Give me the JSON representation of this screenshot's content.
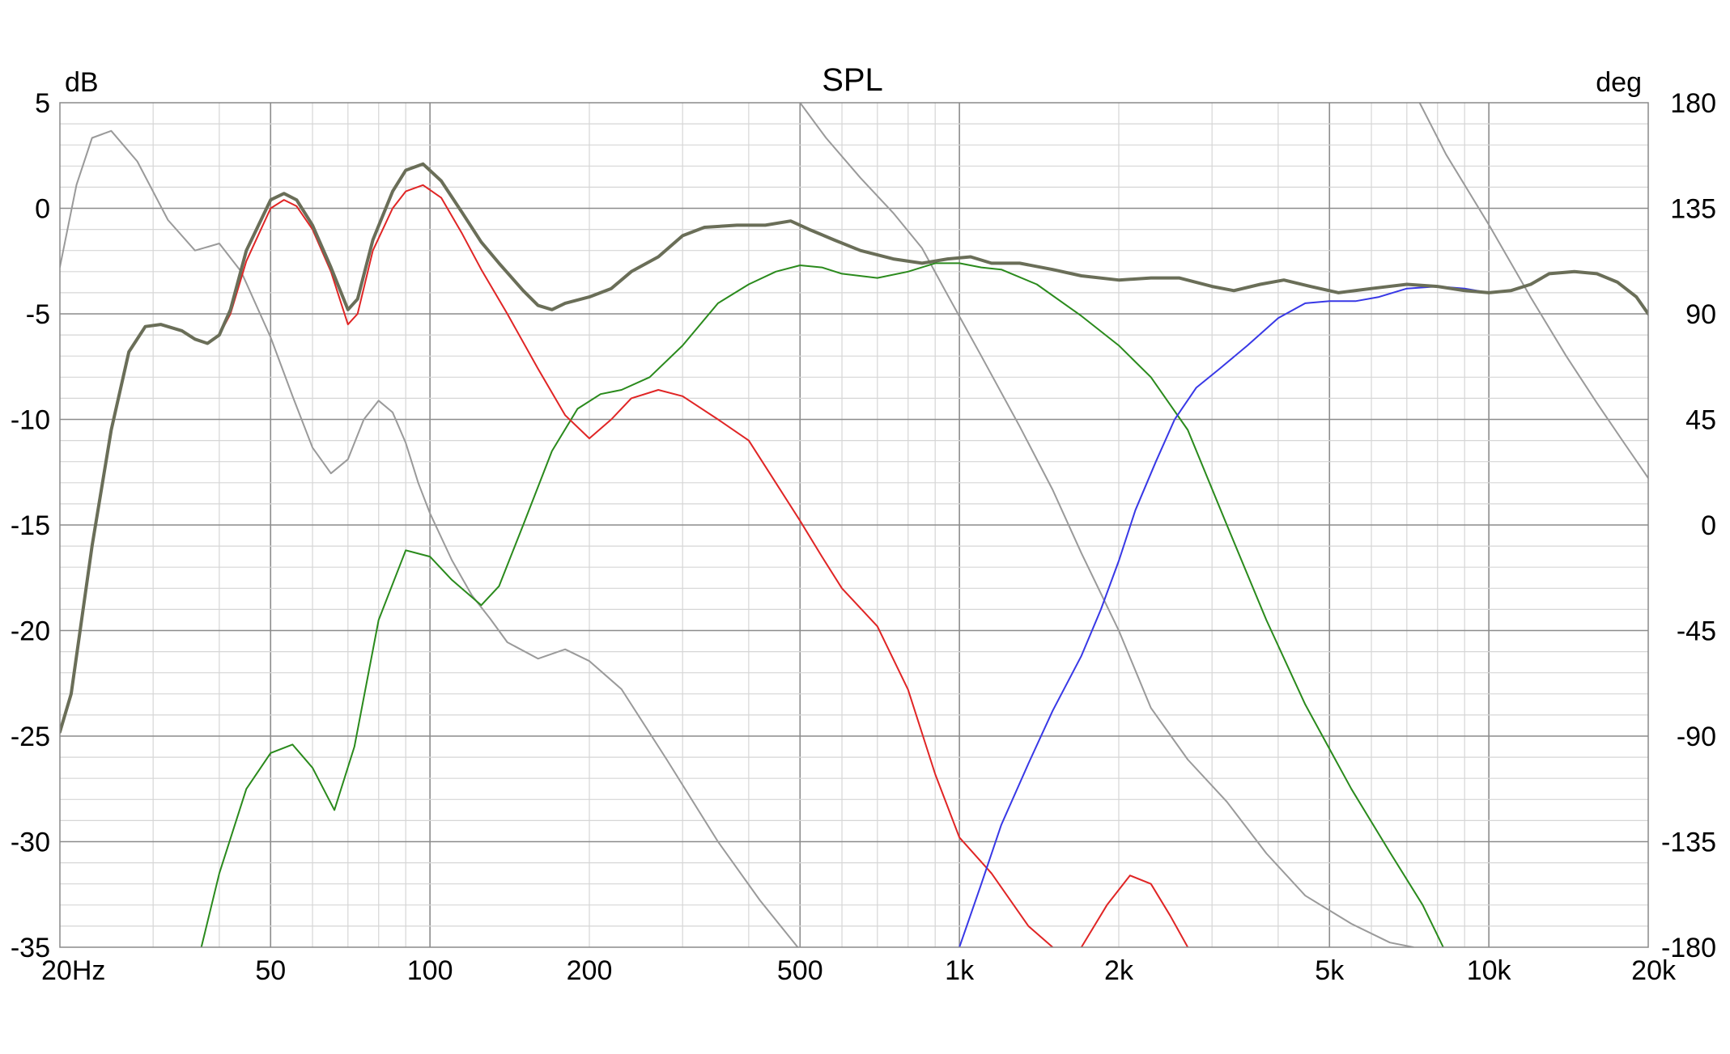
{
  "chart_data": {
    "type": "line",
    "title": "SPL",
    "left_axis_unit": "dB",
    "right_axis_unit": "deg",
    "x_scale": "log",
    "xlim": [
      20,
      20000
    ],
    "ylim": [
      -35,
      5
    ],
    "y2lim": [
      -180,
      180
    ],
    "x_tick_labels": [
      {
        "v": 20,
        "label": "20Hz"
      },
      {
        "v": 50,
        "label": "50"
      },
      {
        "v": 100,
        "label": "100"
      },
      {
        "v": 200,
        "label": "200"
      },
      {
        "v": 500,
        "label": "500"
      },
      {
        "v": 1000,
        "label": "1k"
      },
      {
        "v": 2000,
        "label": "2k"
      },
      {
        "v": 5000,
        "label": "5k"
      },
      {
        "v": 10000,
        "label": "10k"
      },
      {
        "v": 20000,
        "label": "20k"
      }
    ],
    "y_ticks": [
      5,
      0,
      -5,
      -10,
      -15,
      -20,
      -25,
      -30,
      -35
    ],
    "y_tick_labels": [
      "5",
      "0",
      "-5",
      "-10",
      "-15",
      "-20",
      "-25",
      "-30",
      "-35"
    ],
    "y2_ticks": [
      180,
      135,
      90,
      45,
      0,
      -45,
      -90,
      -135,
      -180
    ],
    "y2_tick_labels": [
      "180",
      "135",
      "90",
      "45",
      "0",
      "-45",
      "-90",
      "-135",
      "-180"
    ],
    "grid": true,
    "series": [
      {
        "color": "#9a9a9a",
        "axis": "right",
        "segments": [
          [
            [
              20,
              110
            ],
            [
              21.5,
              145
            ],
            [
              23,
              165
            ],
            [
              25,
              168
            ],
            [
              28,
              155
            ],
            [
              32,
              130
            ],
            [
              36,
              117
            ],
            [
              40,
              120
            ],
            [
              44,
              108
            ],
            [
              50,
              80
            ],
            [
              55,
              55
            ],
            [
              60,
              33
            ],
            [
              65,
              22
            ],
            [
              70,
              28
            ],
            [
              75,
              45
            ],
            [
              80,
              53
            ],
            [
              85,
              48
            ],
            [
              90,
              35
            ],
            [
              95,
              18
            ],
            [
              100,
              5
            ],
            [
              110,
              -15
            ],
            [
              120,
              -30
            ],
            [
              130,
              -40
            ],
            [
              140,
              -50
            ],
            [
              160,
              -57
            ],
            [
              180,
              -53
            ],
            [
              200,
              -58
            ],
            [
              230,
              -70
            ],
            [
              280,
              -100
            ],
            [
              350,
              -135
            ],
            [
              420,
              -160
            ],
            [
              495,
              -180
            ]
          ],
          [
            [
              500,
              180
            ],
            [
              560,
              165
            ],
            [
              650,
              148
            ],
            [
              750,
              133
            ],
            [
              850,
              118
            ],
            [
              950,
              98
            ],
            [
              1100,
              72
            ],
            [
              1300,
              42
            ],
            [
              1500,
              15
            ],
            [
              1700,
              -12
            ],
            [
              2000,
              -45
            ],
            [
              2300,
              -78
            ],
            [
              2700,
              -100
            ],
            [
              3200,
              -118
            ],
            [
              3800,
              -140
            ],
            [
              4500,
              -158
            ],
            [
              5500,
              -170
            ],
            [
              6500,
              -178
            ],
            [
              7200,
              -180
            ]
          ],
          [
            [
              7400,
              180
            ],
            [
              8300,
              158
            ],
            [
              10000,
              128
            ],
            [
              12000,
              97
            ],
            [
              14000,
              72
            ],
            [
              16000,
              52
            ],
            [
              18000,
              35
            ],
            [
              20000,
              20
            ]
          ]
        ]
      },
      {
        "color": "#2a8a1c",
        "axis": "left",
        "segments": [
          [
            [
              37,
              -35
            ],
            [
              40,
              -31.5
            ],
            [
              45,
              -27.5
            ],
            [
              50,
              -25.8
            ],
            [
              55,
              -25.4
            ],
            [
              60,
              -26.5
            ],
            [
              66,
              -28.5
            ],
            [
              72,
              -25.5
            ],
            [
              80,
              -19.5
            ],
            [
              90,
              -16.2
            ],
            [
              100,
              -16.5
            ],
            [
              110,
              -17.6
            ],
            [
              125,
              -18.8
            ],
            [
              135,
              -17.9
            ],
            [
              150,
              -15
            ],
            [
              170,
              -11.5
            ],
            [
              190,
              -9.5
            ],
            [
              210,
              -8.8
            ],
            [
              230,
              -8.6
            ],
            [
              260,
              -8
            ],
            [
              300,
              -6.5
            ],
            [
              350,
              -4.5
            ],
            [
              400,
              -3.6
            ],
            [
              450,
              -3
            ],
            [
              500,
              -2.7
            ],
            [
              550,
              -2.8
            ],
            [
              600,
              -3.1
            ],
            [
              700,
              -3.3
            ],
            [
              800,
              -3
            ],
            [
              900,
              -2.6
            ],
            [
              1000,
              -2.6
            ],
            [
              1100,
              -2.8
            ],
            [
              1200,
              -2.9
            ],
            [
              1400,
              -3.6
            ],
            [
              1700,
              -5.1
            ],
            [
              2000,
              -6.5
            ],
            [
              2300,
              -8
            ],
            [
              2700,
              -10.5
            ],
            [
              3200,
              -15
            ],
            [
              3800,
              -19.5
            ],
            [
              4500,
              -23.5
            ],
            [
              5500,
              -27.5
            ],
            [
              6500,
              -30.5
            ],
            [
              7500,
              -33
            ],
            [
              8200,
              -35
            ]
          ]
        ]
      },
      {
        "color": "#e02525",
        "axis": "left",
        "segments": [
          [
            [
              20,
              -24.8
            ],
            [
              21,
              -23
            ],
            [
              23,
              -16
            ],
            [
              25,
              -10.5
            ],
            [
              27,
              -6.8
            ],
            [
              29,
              -5.6
            ],
            [
              31,
              -5.5
            ],
            [
              34,
              -5.8
            ],
            [
              36,
              -6.2
            ],
            [
              38,
              -6.4
            ],
            [
              40,
              -6
            ],
            [
              42,
              -5
            ],
            [
              45,
              -2.5
            ],
            [
              50,
              0
            ],
            [
              53,
              0.4
            ],
            [
              56,
              0.1
            ],
            [
              60,
              -1
            ],
            [
              65,
              -3
            ],
            [
              70,
              -5.5
            ],
            [
              73,
              -5
            ],
            [
              78,
              -2
            ],
            [
              85,
              0
            ],
            [
              90,
              0.8
            ],
            [
              97,
              1.1
            ],
            [
              105,
              0.5
            ],
            [
              115,
              -1.2
            ],
            [
              125,
              -2.9
            ],
            [
              140,
              -5
            ],
            [
              160,
              -7.6
            ],
            [
              180,
              -9.8
            ],
            [
              200,
              -10.9
            ],
            [
              220,
              -10
            ],
            [
              240,
              -9
            ],
            [
              270,
              -8.6
            ],
            [
              300,
              -8.9
            ],
            [
              350,
              -10
            ],
            [
              400,
              -11
            ],
            [
              450,
              -13
            ],
            [
              500,
              -14.8
            ],
            [
              550,
              -16.5
            ],
            [
              600,
              -18
            ],
            [
              700,
              -19.8
            ],
            [
              800,
              -22.8
            ],
            [
              900,
              -26.8
            ],
            [
              1000,
              -29.8
            ],
            [
              1150,
              -31.5
            ],
            [
              1350,
              -34
            ],
            [
              1500,
              -35
            ]
          ],
          [
            [
              1700,
              -35
            ],
            [
              1900,
              -33
            ],
            [
              2100,
              -31.6
            ],
            [
              2300,
              -32
            ],
            [
              2500,
              -33.5
            ],
            [
              2700,
              -35
            ]
          ]
        ]
      },
      {
        "color": "#3838e6",
        "axis": "left",
        "segments": [
          [
            [
              1000,
              -35
            ],
            [
              1100,
              -32
            ],
            [
              1200,
              -29.2
            ],
            [
              1350,
              -26.3
            ],
            [
              1500,
              -23.8
            ],
            [
              1700,
              -21.2
            ],
            [
              1850,
              -19
            ],
            [
              2000,
              -16.7
            ],
            [
              2150,
              -14.3
            ],
            [
              2350,
              -12
            ],
            [
              2550,
              -10
            ],
            [
              2800,
              -8.5
            ],
            [
              3100,
              -7.6
            ],
            [
              3500,
              -6.5
            ],
            [
              4000,
              -5.2
            ],
            [
              4500,
              -4.5
            ],
            [
              5000,
              -4.4
            ],
            [
              5600,
              -4.4
            ],
            [
              6200,
              -4.2
            ],
            [
              7000,
              -3.8
            ],
            [
              8000,
              -3.7
            ],
            [
              9000,
              -3.8
            ],
            [
              10000,
              -4
            ],
            [
              11000,
              -3.9
            ],
            [
              12000,
              -3.6
            ],
            [
              13000,
              -3.1
            ],
            [
              14500,
              -3
            ],
            [
              16000,
              -3.1
            ],
            [
              17500,
              -3.5
            ],
            [
              19000,
              -4.2
            ],
            [
              20000,
              -5
            ]
          ]
        ]
      },
      {
        "color": "#6a6e58",
        "axis": "left",
        "width": 4,
        "segments": [
          [
            [
              20,
              -24.8
            ],
            [
              21,
              -23
            ],
            [
              23,
              -16
            ],
            [
              25,
              -10.5
            ],
            [
              27,
              -6.8
            ],
            [
              29,
              -5.6
            ],
            [
              31,
              -5.5
            ],
            [
              34,
              -5.8
            ],
            [
              36,
              -6.2
            ],
            [
              38,
              -6.4
            ],
            [
              40,
              -6
            ],
            [
              42,
              -4.8
            ],
            [
              45,
              -2
            ],
            [
              50,
              0.4
            ],
            [
              53,
              0.7
            ],
            [
              56,
              0.4
            ],
            [
              60,
              -0.8
            ],
            [
              65,
              -2.8
            ],
            [
              70,
              -4.8
            ],
            [
              73,
              -4.3
            ],
            [
              78,
              -1.5
            ],
            [
              85,
              0.8
            ],
            [
              90,
              1.8
            ],
            [
              97,
              2.1
            ],
            [
              105,
              1.3
            ],
            [
              115,
              -0.2
            ],
            [
              125,
              -1.6
            ],
            [
              135,
              -2.6
            ],
            [
              150,
              -3.9
            ],
            [
              160,
              -4.6
            ],
            [
              170,
              -4.8
            ],
            [
              180,
              -4.5
            ],
            [
              200,
              -4.2
            ],
            [
              220,
              -3.8
            ],
            [
              240,
              -3
            ],
            [
              270,
              -2.3
            ],
            [
              300,
              -1.3
            ],
            [
              330,
              -0.9
            ],
            [
              380,
              -0.8
            ],
            [
              430,
              -0.8
            ],
            [
              480,
              -0.6
            ],
            [
              520,
              -1
            ],
            [
              580,
              -1.5
            ],
            [
              650,
              -2
            ],
            [
              750,
              -2.4
            ],
            [
              850,
              -2.6
            ],
            [
              950,
              -2.4
            ],
            [
              1050,
              -2.3
            ],
            [
              1150,
              -2.6
            ],
            [
              1300,
              -2.6
            ],
            [
              1500,
              -2.9
            ],
            [
              1700,
              -3.2
            ],
            [
              2000,
              -3.4
            ],
            [
              2300,
              -3.3
            ],
            [
              2600,
              -3.3
            ],
            [
              3000,
              -3.7
            ],
            [
              3300,
              -3.9
            ],
            [
              3700,
              -3.6
            ],
            [
              4100,
              -3.4
            ],
            [
              4600,
              -3.7
            ],
            [
              5200,
              -4
            ],
            [
              6000,
              -3.8
            ],
            [
              7000,
              -3.6
            ],
            [
              8000,
              -3.7
            ],
            [
              9000,
              -3.9
            ],
            [
              10000,
              -4
            ],
            [
              11000,
              -3.9
            ],
            [
              12000,
              -3.6
            ],
            [
              13000,
              -3.1
            ],
            [
              14500,
              -3
            ],
            [
              16000,
              -3.1
            ],
            [
              17500,
              -3.5
            ],
            [
              19000,
              -4.2
            ],
            [
              20000,
              -5
            ]
          ]
        ]
      }
    ]
  }
}
